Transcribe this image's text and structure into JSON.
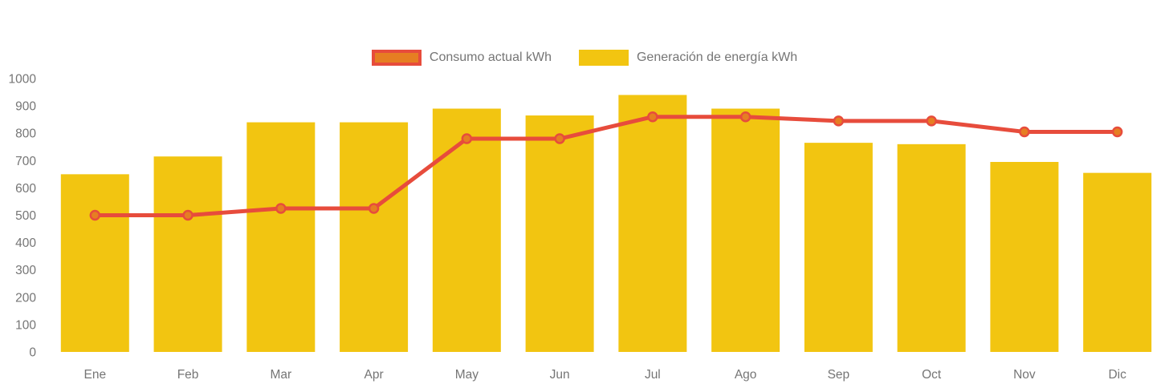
{
  "legend": {
    "items": [
      {
        "label": "Consumo actual kWh",
        "swatch_fill": "#E67E22",
        "swatch_border": "#E74C3C"
      },
      {
        "label": "Generación de energía kWh",
        "swatch_fill": "#F2C511",
        "swatch_border": ""
      }
    ]
  },
  "colors": {
    "bar": "#F2C511",
    "line": "#E74C3C",
    "marker_fill": "#E67E22",
    "marker_stroke": "#E74C3C",
    "axis_text": "#757575",
    "background": "#FFFFFF"
  },
  "chart_data": {
    "type": "bar",
    "subtype": "bar-line-combo",
    "title": "",
    "xlabel": "",
    "ylabel": "",
    "categories": [
      "Ene",
      "Feb",
      "Mar",
      "Apr",
      "May",
      "Jun",
      "Jul",
      "Ago",
      "Sep",
      "Oct",
      "Nov",
      "Dic"
    ],
    "series": [
      {
        "name": "Generación de energía kWh",
        "type": "bar",
        "color": "#F2C511",
        "values": [
          650,
          715,
          840,
          840,
          890,
          865,
          940,
          890,
          765,
          760,
          695,
          655
        ]
      },
      {
        "name": "Consumo actual kWh",
        "type": "line",
        "color": "#E74C3C",
        "marker_color": "#E67E22",
        "values": [
          500,
          500,
          525,
          525,
          780,
          780,
          860,
          860,
          845,
          845,
          805,
          805
        ]
      }
    ],
    "ylim": [
      0,
      1000
    ],
    "ytick_step": 100,
    "yticks": [
      0,
      100,
      200,
      300,
      400,
      500,
      600,
      700,
      800,
      900,
      1000
    ],
    "grid": false,
    "legend_position": "top-center"
  }
}
